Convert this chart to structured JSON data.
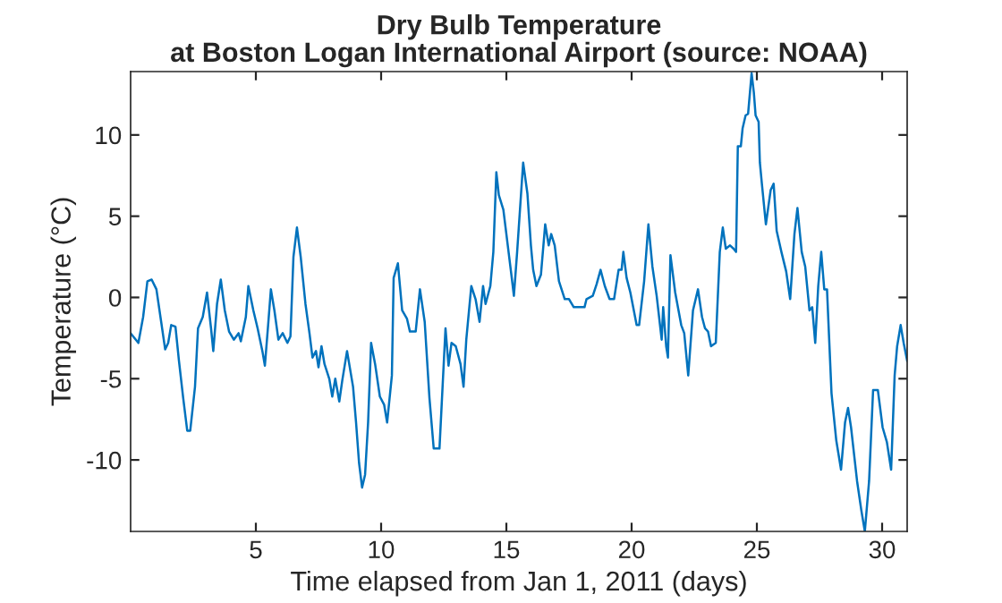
{
  "chart_data": {
    "type": "line",
    "title": "Dry Bulb Temperature\nat Boston Logan International Airport (source: NOAA)",
    "xlabel": "Time elapsed from Jan 1, 2011 (days)",
    "ylabel": "Temperature (°C)",
    "xlim": [
      0,
      31
    ],
    "ylim": [
      -14.4,
      13.9
    ],
    "xticks": [
      5,
      10,
      15,
      20,
      25,
      30
    ],
    "yticks": [
      -10,
      -5,
      0,
      5,
      10
    ],
    "marker": "none",
    "line_style": "solid",
    "series": [
      {
        "color": "#0072bd",
        "x": [
          0.0,
          0.31,
          0.5,
          0.67,
          0.84,
          1.03,
          1.22,
          1.38,
          1.5,
          1.62,
          1.79,
          1.93,
          2.1,
          2.26,
          2.38,
          2.57,
          2.69,
          2.88,
          3.05,
          3.21,
          3.3,
          3.45,
          3.6,
          3.76,
          3.93,
          4.12,
          4.31,
          4.4,
          4.6,
          4.7,
          4.9,
          5.07,
          5.26,
          5.36,
          5.5,
          5.6,
          5.74,
          5.9,
          6.07,
          6.26,
          6.38,
          6.5,
          6.64,
          6.79,
          6.98,
          7.14,
          7.26,
          7.4,
          7.5,
          7.62,
          7.74,
          7.93,
          8.05,
          8.17,
          8.33,
          8.45,
          8.64,
          8.88,
          9.0,
          9.12,
          9.24,
          9.36,
          9.48,
          9.6,
          9.76,
          9.95,
          10.12,
          10.24,
          10.43,
          10.5,
          10.67,
          10.84,
          11.03,
          11.15,
          11.38,
          11.55,
          11.74,
          11.93,
          12.1,
          12.33,
          12.57,
          12.69,
          12.81,
          12.98,
          13.17,
          13.29,
          13.4,
          13.6,
          13.77,
          13.93,
          14.07,
          14.17,
          14.36,
          14.48,
          14.6,
          14.7,
          14.88,
          15.0,
          15.2,
          15.3,
          15.43,
          15.67,
          15.84,
          15.98,
          16.07,
          16.2,
          16.38,
          16.55,
          16.69,
          16.79,
          16.93,
          17.1,
          17.33,
          17.5,
          17.69,
          18.12,
          18.2,
          18.45,
          18.6,
          18.76,
          18.93,
          19.12,
          19.3,
          19.48,
          19.6,
          19.67,
          19.8,
          19.95,
          20.2,
          20.3,
          20.5,
          20.67,
          20.83,
          21.0,
          21.2,
          21.26,
          21.38,
          21.45,
          21.55,
          21.74,
          21.98,
          22.1,
          22.26,
          22.45,
          22.65,
          22.81,
          22.93,
          23.05,
          23.17,
          23.36,
          23.52,
          23.64,
          23.76,
          23.93,
          24.07,
          24.17,
          24.24,
          24.36,
          24.43,
          24.55,
          24.65,
          24.79,
          24.88,
          24.95,
          25.07,
          25.12,
          25.2,
          25.36,
          25.55,
          25.67,
          25.79,
          25.98,
          26.17,
          26.33,
          26.5,
          26.62,
          26.79,
          26.93,
          27.1,
          27.21,
          27.33,
          27.45,
          27.57,
          27.69,
          27.8,
          27.98,
          28.17,
          28.36,
          28.52,
          28.64,
          28.76,
          29.0,
          29.17,
          29.31,
          29.48,
          29.64,
          29.83,
          30.02,
          30.19,
          30.36,
          30.5,
          30.6,
          30.74,
          30.86,
          31.0
        ],
        "values": [
          -2.2,
          -2.8,
          -1.2,
          1.0,
          1.1,
          0.5,
          -1.5,
          -3.2,
          -2.8,
          -1.7,
          -1.8,
          -3.9,
          -6.2,
          -8.2,
          -8.2,
          -5.5,
          -1.9,
          -1.2,
          0.3,
          -1.9,
          -3.3,
          -0.4,
          1.1,
          -0.8,
          -2.1,
          -2.6,
          -2.2,
          -2.7,
          -1.2,
          0.7,
          -0.8,
          -1.9,
          -3.3,
          -4.2,
          -1.5,
          0.5,
          -0.8,
          -2.6,
          -2.2,
          -2.8,
          -2.4,
          2.5,
          4.3,
          2.5,
          -0.4,
          -2.2,
          -3.7,
          -3.3,
          -4.3,
          -3.0,
          -4.1,
          -5.0,
          -6.1,
          -5.0,
          -6.4,
          -5.1,
          -3.3,
          -5.5,
          -7.7,
          -10.2,
          -11.7,
          -10.9,
          -7.7,
          -2.8,
          -4.1,
          -6.1,
          -6.6,
          -7.7,
          -4.8,
          1.2,
          2.1,
          -0.8,
          -1.3,
          -2.1,
          -2.1,
          0.5,
          -1.5,
          -6.2,
          -9.3,
          -9.3,
          -1.9,
          -4.2,
          -2.8,
          -3.0,
          -4.1,
          -5.5,
          -2.6,
          0.7,
          -0.1,
          -1.5,
          0.7,
          -0.4,
          0.7,
          2.8,
          7.7,
          6.3,
          5.4,
          3.9,
          1.4,
          0.1,
          2.8,
          8.3,
          6.4,
          3.2,
          1.7,
          0.7,
          1.4,
          4.5,
          3.2,
          3.9,
          3.2,
          1.0,
          -0.1,
          -0.1,
          -0.6,
          -0.6,
          -0.1,
          0.1,
          0.8,
          1.7,
          0.7,
          -0.1,
          -0.1,
          1.7,
          1.7,
          2.8,
          1.2,
          0.3,
          -1.7,
          -1.7,
          1.0,
          4.5,
          1.9,
          0.1,
          -2.6,
          -0.6,
          -3.0,
          -3.7,
          2.6,
          0.3,
          -1.7,
          -2.2,
          -4.8,
          -0.8,
          0.5,
          -1.2,
          -1.9,
          -2.1,
          -3.0,
          -2.8,
          2.8,
          4.3,
          3.0,
          3.2,
          3.0,
          2.8,
          9.3,
          9.3,
          10.4,
          11.2,
          11.3,
          13.8,
          12.6,
          11.2,
          10.8,
          8.3,
          7.0,
          4.5,
          6.6,
          7.0,
          4.1,
          2.8,
          1.6,
          -0.1,
          3.9,
          5.5,
          2.8,
          1.9,
          -0.8,
          -0.6,
          -2.8,
          0.7,
          2.8,
          0.5,
          0.5,
          -5.9,
          -8.8,
          -10.6,
          -7.7,
          -6.8,
          -8.0,
          -11.3,
          -13.1,
          -14.4,
          -11.3,
          -5.7,
          -5.7,
          -8.0,
          -8.9,
          -10.6,
          -4.8,
          -3.0,
          -1.7,
          -2.8,
          -3.9
        ]
      }
    ]
  }
}
